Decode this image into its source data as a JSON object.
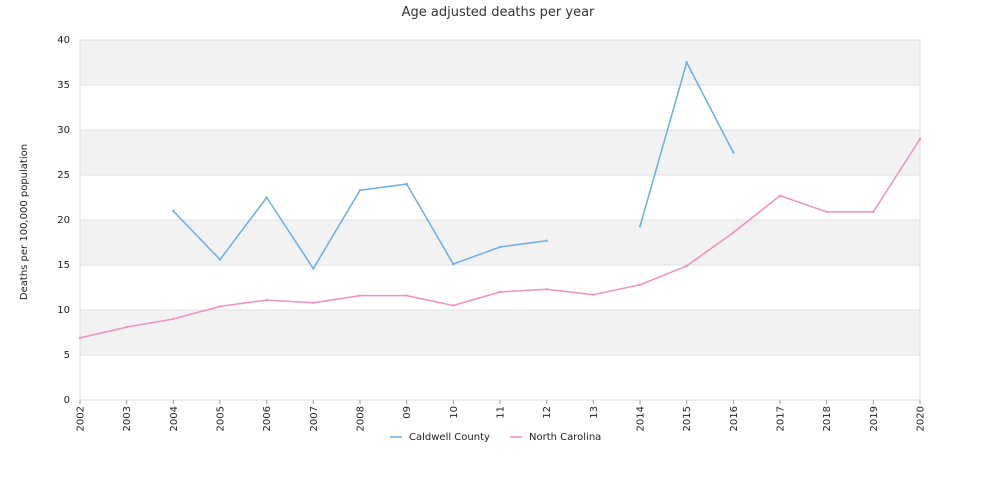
{
  "chart_data": {
    "type": "line",
    "title": "Age adjusted deaths per year",
    "xlabel": "",
    "ylabel": "Deaths per 100,000 population",
    "ylim": [
      0,
      40
    ],
    "yticks": [
      0,
      5,
      10,
      15,
      20,
      25,
      30,
      35,
      40
    ],
    "grid": "horizontal, alternating bands",
    "legend_position": "bottom-center",
    "categories": [
      "2002",
      "2003",
      "2004",
      "2005",
      "2006",
      "2007",
      "2008",
      "09",
      "10",
      "11",
      "12",
      "13",
      "2014",
      "2015",
      "2016",
      "2017",
      "2018",
      "2019",
      "2020"
    ],
    "series": [
      {
        "name": "Caldwell County",
        "color": "#6aaee8",
        "values": [
          null,
          null,
          21.0,
          15.6,
          22.5,
          14.6,
          23.3,
          24.0,
          15.1,
          17.0,
          17.7,
          null,
          19.3,
          37.5,
          27.5,
          null,
          null,
          null,
          null
        ]
      },
      {
        "name": "North Carolina",
        "color": "#f08fc0",
        "values": [
          6.9,
          8.1,
          9.0,
          10.4,
          11.1,
          10.8,
          11.6,
          11.6,
          10.5,
          12.0,
          12.3,
          11.7,
          12.8,
          14.9,
          18.6,
          22.7,
          20.9,
          20.9,
          29.0
        ]
      }
    ]
  },
  "colors": {
    "band": "#f2f2f2",
    "gridline": "#e0e0e0",
    "frame": "#dddddd"
  }
}
